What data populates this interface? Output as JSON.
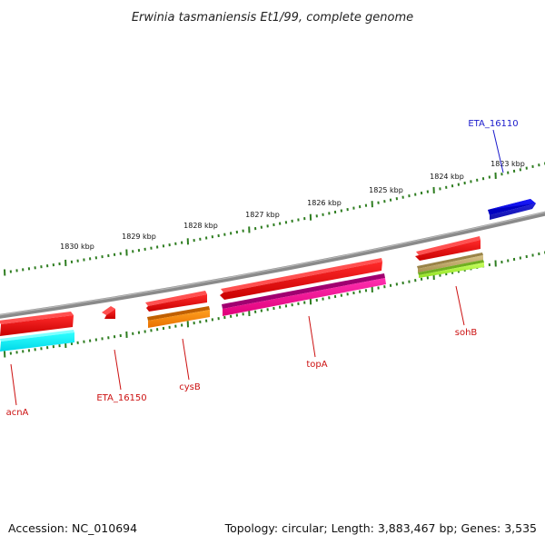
{
  "title": "Erwinia tasmaniensis Et1/99, complete genome",
  "footer": {
    "accession": "Accession: NC_010694",
    "topology": "Topology: circular; Length: 3,883,467 bp; Genes: 3,535"
  },
  "colors": {
    "backbone": "#8a8a8a",
    "tick": "#2e7d20",
    "label_forward": "#1a1acc",
    "label_reverse": "#cc1111",
    "gene_red": "#e00000",
    "gene_blue": "#0000e0",
    "gene_cyan": "#00f0f0",
    "gene_orange": "#ff8c00",
    "gene_magenta": "#ff1aa0",
    "gene_khaki": "#c8b070",
    "gene_lime": "#a8f040"
  },
  "scale_labels": [
    "1830 kbp",
    "1829 kbp",
    "1828 kbp",
    "1827 kbp",
    "1826 kbp",
    "1825 kbp",
    "1824 kbp",
    "1823 kbp"
  ],
  "gene_labels": [
    {
      "id": "acnA",
      "text": "acnA",
      "strand": "reverse"
    },
    {
      "id": "eta-16150",
      "text": "ETA_16150",
      "strand": "reverse"
    },
    {
      "id": "cysb",
      "text": "cysB",
      "strand": "reverse"
    },
    {
      "id": "topa",
      "text": "topA",
      "strand": "reverse"
    },
    {
      "id": "sohb",
      "text": "sohB",
      "strand": "reverse"
    },
    {
      "id": "eta-16110",
      "text": "ETA_16110",
      "strand": "forward"
    }
  ]
}
